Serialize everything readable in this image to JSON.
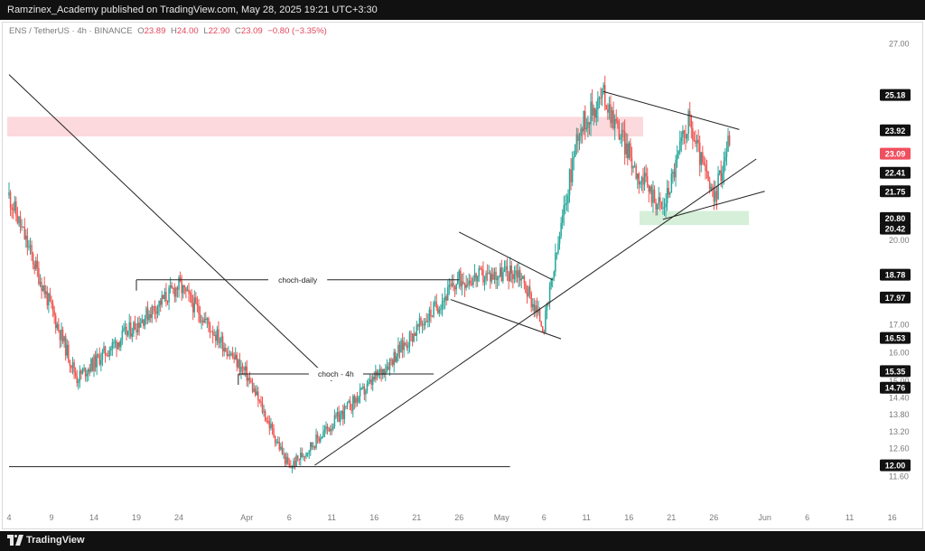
{
  "header": {
    "publisher": "Ramzinex_Academy published on TradingView.com, May 28, 2025 19:21 UTC+3:30"
  },
  "footer": {
    "brand": "TradingView"
  },
  "legend": {
    "symbol": "ENS / TetherUS · 4h · BINANCE",
    "o_label": "O",
    "o_value": "23.89",
    "h_label": "H",
    "h_value": "24.00",
    "l_label": "L",
    "l_value": "22.90",
    "c_label": "C",
    "c_value": "23.09",
    "change": "−0.80 (−3.35%)"
  },
  "colors": {
    "up": "#26a69a",
    "down": "#ef5350",
    "line": "#222222",
    "resistance_zone": "#fcd9dc",
    "support_zone": "#d6efd9",
    "current_price": "#ef4f5f"
  },
  "chart_data": {
    "type": "candlestick",
    "ylim": [
      11.2,
      27.4
    ],
    "y_ticks": [
      "27.00",
      "20.00",
      "17.00",
      "16.00",
      "15.00",
      "14.40",
      "13.80",
      "13.20",
      "12.60",
      "11.60"
    ],
    "x_ticks": [
      "4",
      "9",
      "14",
      "19",
      "24",
      "Apr",
      "6",
      "11",
      "16",
      "21",
      "26",
      "May",
      "6",
      "11",
      "16",
      "21",
      "26",
      "Jun",
      "6",
      "11",
      "16"
    ],
    "price_labels": [
      {
        "value": "25.18",
        "type": "level"
      },
      {
        "value": "23.92",
        "type": "level"
      },
      {
        "value": "23.09",
        "type": "current"
      },
      {
        "value": "22.41",
        "type": "level"
      },
      {
        "value": "21.75",
        "type": "level"
      },
      {
        "value": "20.80",
        "type": "level"
      },
      {
        "value": "20.42",
        "type": "level"
      },
      {
        "value": "18.78",
        "type": "level"
      },
      {
        "value": "17.97",
        "type": "level"
      },
      {
        "value": "16.53",
        "type": "level"
      },
      {
        "value": "15.35",
        "type": "level"
      },
      {
        "value": "14.76",
        "type": "level"
      },
      {
        "value": "12.00",
        "type": "level"
      }
    ],
    "annotations": [
      {
        "text": "choch-daily",
        "price": 18.6,
        "from": "Mar 19",
        "to": "Apr 26"
      },
      {
        "text": "choch - 4h",
        "price": 15.25,
        "from": "Mar 31",
        "to": "Apr 23"
      }
    ],
    "zones": [
      {
        "name": "resistance",
        "from_price": 23.7,
        "to_price": 24.4
      },
      {
        "name": "support",
        "from_price": 20.55,
        "to_price": 21.05
      }
    ],
    "key_points": [
      {
        "date": "Mar 4",
        "price": 21.6
      },
      {
        "date": "Mar 12",
        "price": 15.1
      },
      {
        "date": "Mar 24",
        "price": 18.4
      },
      {
        "date": "Apr 1",
        "price": 15.2
      },
      {
        "date": "Apr 6",
        "price": 11.9
      },
      {
        "date": "Apr 15",
        "price": 14.7
      },
      {
        "date": "Apr 26",
        "price": 18.6
      },
      {
        "date": "May 3",
        "price": 18.9
      },
      {
        "date": "May 6",
        "price": 16.9
      },
      {
        "date": "May 10",
        "price": 23.9
      },
      {
        "date": "May 13",
        "price": 25.2
      },
      {
        "date": "May 17",
        "price": 22.4
      },
      {
        "date": "May 20",
        "price": 21.1
      },
      {
        "date": "May 23",
        "price": 24.3
      },
      {
        "date": "May 26",
        "price": 21.4
      },
      {
        "date": "May 28",
        "price": 23.9
      }
    ]
  }
}
